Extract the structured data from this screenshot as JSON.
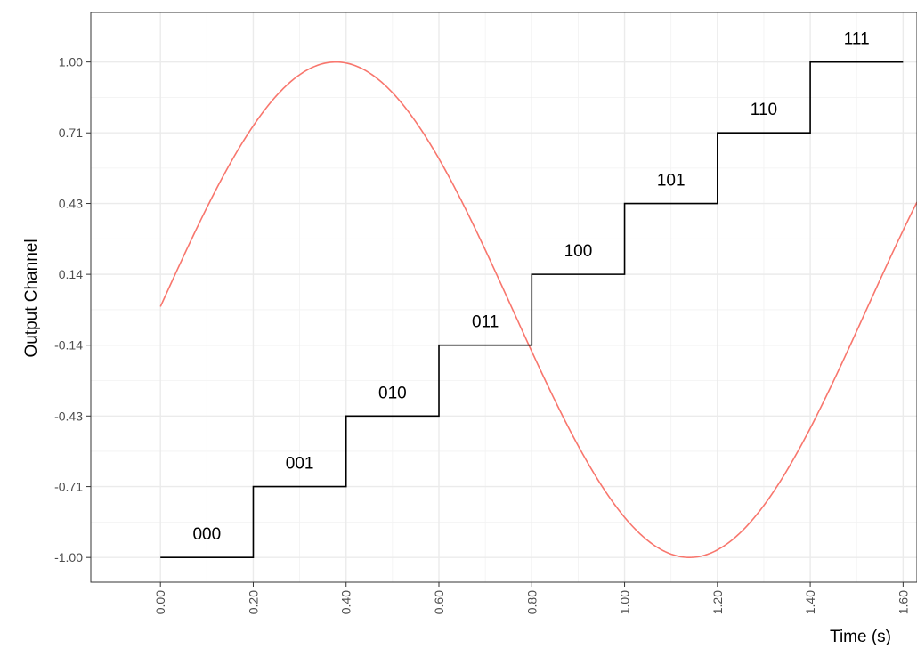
{
  "chart_data": {
    "type": "line",
    "title": "",
    "xlabel": "Time (s)",
    "ylabel": "Output Channel",
    "xlim": [
      -0.15,
      1.63
    ],
    "ylim": [
      -1.1,
      1.2
    ],
    "grid": true,
    "x_ticks": [
      0.0,
      0.2,
      0.4,
      0.6,
      0.8,
      1.0,
      1.2,
      1.4,
      1.6
    ],
    "x_tick_labels": [
      "0.00",
      "0.20",
      "0.40",
      "0.60",
      "0.80",
      "1.00",
      "1.20",
      "1.40",
      "1.60"
    ],
    "y_ticks": [
      -1.0,
      -0.714,
      -0.429,
      -0.143,
      0.143,
      0.429,
      0.714,
      1.0
    ],
    "y_tick_labels": [
      "-1.00",
      "-0.71",
      "-0.43",
      "-0.14",
      "0.14",
      "0.43",
      "0.71",
      "1.00"
    ],
    "series": [
      {
        "type": "step",
        "color": "#000000",
        "segments": [
          {
            "x0": 0.0,
            "x1": 0.2,
            "y": -1.0,
            "label": "000"
          },
          {
            "x0": 0.2,
            "x1": 0.4,
            "y": -0.714,
            "label": "001"
          },
          {
            "x0": 0.4,
            "x1": 0.6,
            "y": -0.429,
            "label": "010"
          },
          {
            "x0": 0.6,
            "x1": 0.8,
            "y": -0.143,
            "label": "011"
          },
          {
            "x0": 0.8,
            "x1": 1.0,
            "y": 0.143,
            "label": "100"
          },
          {
            "x0": 1.0,
            "x1": 1.2,
            "y": 0.429,
            "label": "101"
          },
          {
            "x0": 1.2,
            "x1": 1.4,
            "y": 0.714,
            "label": "110"
          },
          {
            "x0": 1.4,
            "x1": 1.6,
            "y": 1.0,
            "label": "111"
          }
        ]
      },
      {
        "type": "line",
        "color": "#F8766D",
        "function": "sine",
        "x_range": [
          0.0,
          1.63
        ],
        "peak_x": 0.378,
        "trough_x": 1.14,
        "amplitude": 1.0
      }
    ]
  }
}
